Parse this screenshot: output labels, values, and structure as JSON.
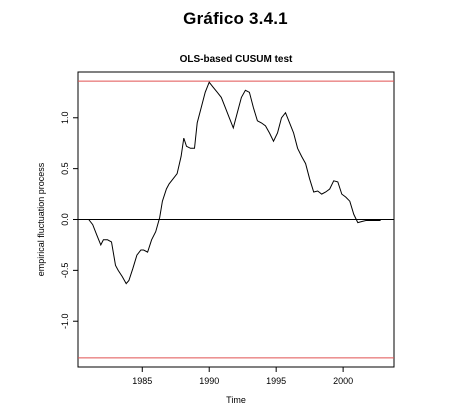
{
  "page": {
    "heading": "Gráfico 3.4.1"
  },
  "chart_data": {
    "type": "line",
    "title": "OLS-based CUSUM test",
    "xlabel": "Time",
    "ylabel": "empirical fluctuation process",
    "xlim": [
      1980.2,
      2003.8
    ],
    "ylim": [
      -1.45,
      1.45
    ],
    "x_ticks": [
      1985,
      1990,
      1995,
      2000
    ],
    "y_ticks": [
      -1.0,
      -0.5,
      0.0,
      0.5,
      1.0
    ],
    "x_tick_labels": [
      "1985",
      "1990",
      "1995",
      "2000"
    ],
    "y_tick_labels": [
      "-1.0",
      "-0.5",
      "0.0",
      "0.5",
      "1.0"
    ],
    "reference_lines": [
      {
        "y": 1.36,
        "color": "#e05050"
      },
      {
        "y": -1.36,
        "color": "#e05050"
      },
      {
        "y": 0.0,
        "color": "#000000"
      }
    ],
    "grid": false,
    "series": [
      {
        "color": "#000000",
        "x": [
          1981.0,
          1981.3,
          1981.6,
          1981.9,
          1982.1,
          1982.4,
          1982.7,
          1983.0,
          1983.2,
          1983.5,
          1983.8,
          1984.0,
          1984.3,
          1984.6,
          1984.9,
          1985.1,
          1985.4,
          1985.7,
          1986.0,
          1986.3,
          1986.5,
          1986.8,
          1987.0,
          1987.3,
          1987.6,
          1987.9,
          1988.1,
          1988.3,
          1988.6,
          1988.9,
          1989.1,
          1989.4,
          1989.7,
          1990.0,
          1990.3,
          1990.6,
          1990.9,
          1991.2,
          1991.5,
          1991.8,
          1992.1,
          1992.4,
          1992.7,
          1993.0,
          1993.3,
          1993.6,
          1993.9,
          1994.2,
          1994.5,
          1994.8,
          1995.1,
          1995.4,
          1995.7,
          1996.0,
          1996.3,
          1996.6,
          1996.9,
          1997.2,
          1997.5,
          1997.8,
          1998.1,
          1998.4,
          1998.7,
          1999.0,
          1999.3,
          1999.6,
          1999.9,
          2000.2,
          2000.5,
          2000.8,
          2001.1,
          2001.4,
          2001.7,
          2002.0,
          2002.3,
          2002.6,
          2002.8
        ],
        "y": [
          0.0,
          -0.05,
          -0.15,
          -0.25,
          -0.2,
          -0.2,
          -0.22,
          -0.45,
          -0.5,
          -0.56,
          -0.63,
          -0.6,
          -0.48,
          -0.35,
          -0.3,
          -0.3,
          -0.32,
          -0.2,
          -0.12,
          0.02,
          0.18,
          0.3,
          0.35,
          0.4,
          0.45,
          0.62,
          0.8,
          0.72,
          0.7,
          0.7,
          0.95,
          1.1,
          1.25,
          1.35,
          1.3,
          1.25,
          1.2,
          1.1,
          1.0,
          0.9,
          1.05,
          1.2,
          1.27,
          1.25,
          1.1,
          0.97,
          0.95,
          0.92,
          0.85,
          0.77,
          0.85,
          1.0,
          1.05,
          0.95,
          0.85,
          0.7,
          0.62,
          0.55,
          0.4,
          0.27,
          0.28,
          0.25,
          0.27,
          0.3,
          0.38,
          0.37,
          0.25,
          0.22,
          0.18,
          0.05,
          -0.03,
          -0.02,
          -0.01,
          -0.01,
          -0.01,
          -0.01,
          -0.01
        ]
      }
    ]
  }
}
